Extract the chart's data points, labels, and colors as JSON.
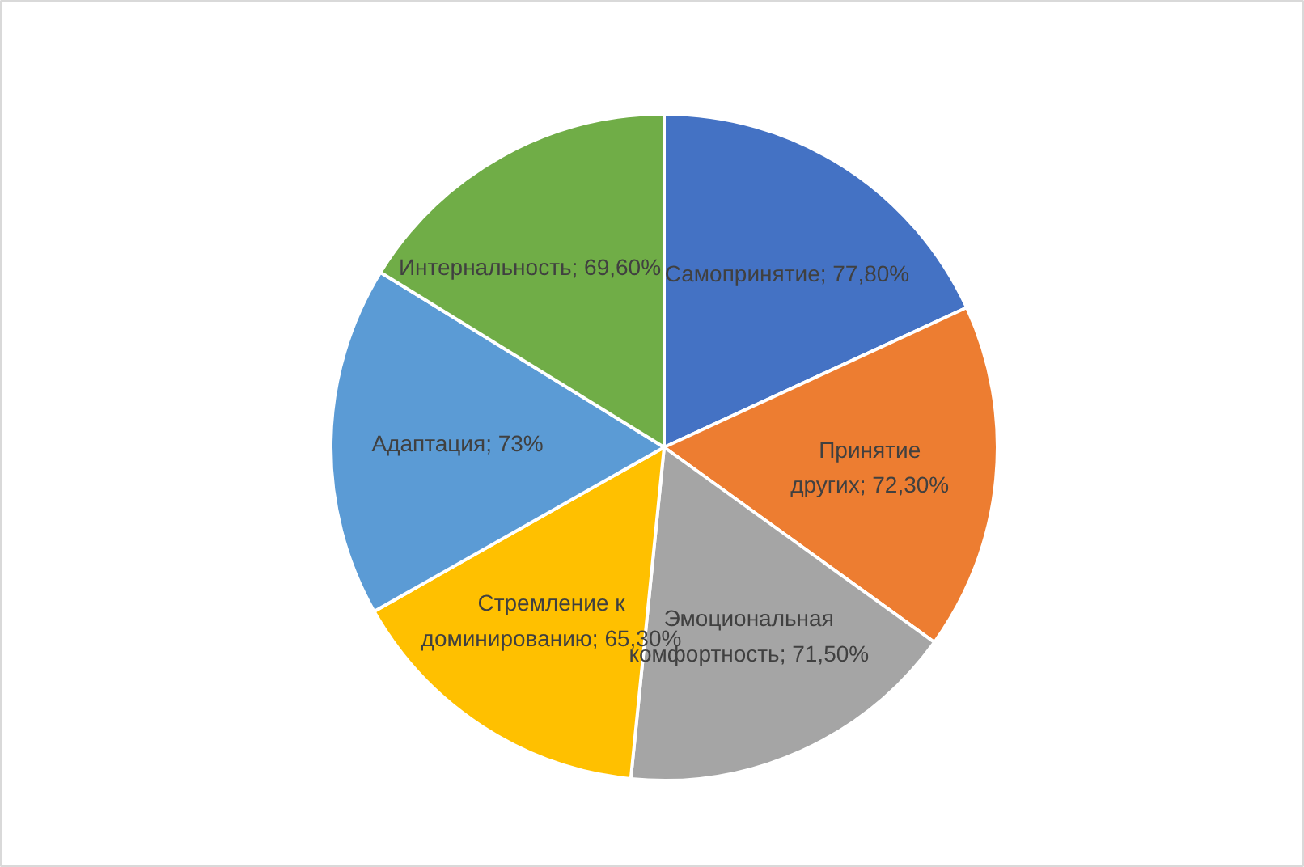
{
  "chart_data": {
    "type": "pie",
    "categories": [
      "Самопринятие",
      "Принятие других",
      "Эмоциональная комфортность",
      "Стремление к доминированию",
      "Адаптация",
      "Интернальность"
    ],
    "values": [
      77.8,
      72.3,
      71.5,
      65.3,
      73,
      69.6
    ],
    "value_labels": [
      "77,80%",
      "72,30%",
      "71,50%",
      "65,30%",
      "73%",
      "69,60%"
    ],
    "colors": [
      "#4472c4",
      "#ed7d31",
      "#a5a5a5",
      "#ffc000",
      "#5b9bd5",
      "#70ad47"
    ]
  }
}
